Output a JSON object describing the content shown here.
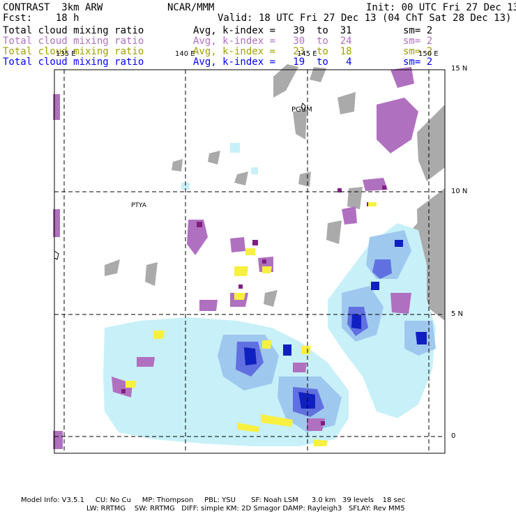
{
  "header": {
    "left1": "CONTRAST  3km ARW",
    "center1": "NCAR/MMM",
    "right1": "Init: 00 UTC Fri 27 Dec 13",
    "left2": "Fcst:    18 h",
    "right2": "Valid: 18 UTC Fri 27 Dec 13 (04 ChT Sat 28 Dec 13)"
  },
  "legend": [
    {
      "label": "Total cloud mixing ratio",
      "stat": "Avg, k-index =   39  to  31",
      "sm": "sm= 2",
      "color": "#000000"
    },
    {
      "label": "Total cloud mixing ratio",
      "stat": "Avg, k-index =   30  to  24",
      "sm": "sm= 2",
      "color": "#b070c0"
    },
    {
      "label": "Total cloud mixing ratio",
      "stat": "Avg, k-index =   23  to  18",
      "sm": "sm= 2",
      "color": "#a0a000"
    },
    {
      "label": "Total cloud mixing ratio",
      "stat": "Avg, k-index =   19  to   4",
      "sm": "sm= 2",
      "color": "#0000ff"
    }
  ],
  "lon_labels": [
    "135 E",
    "140 E",
    "145 E",
    "150 E"
  ],
  "lat_labels": [
    "15 N",
    "10 N",
    "5 N",
    "0"
  ],
  "places": [
    "PGUM",
    "PTYA"
  ],
  "footer": {
    "line1": "Model Info: V3.5.1     CU: No Cu     MP: Thompson     PBL: YSU       SF: Noah LSM      3.0 km   39 levels    18 sec",
    "line2": "LW: RRTMG    SW: RRTMG   DIFF: simple KM: 2D Smagor DAMP: Rayleigh3   SFLAY: Rev MM5"
  },
  "colors": {
    "gray": "#aaaaaa",
    "purple": "#b070c0",
    "dark_purple": "#802080",
    "light_blue": "#c8f0f8",
    "mid_blue": "#9fc8ef",
    "blue": "#6070e0",
    "dark_blue": "#1020c0",
    "yellow": "#f8f040"
  }
}
